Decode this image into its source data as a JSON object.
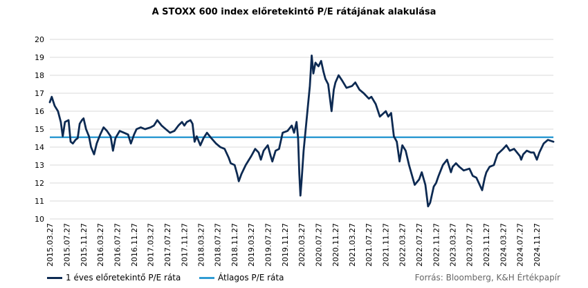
{
  "chart_data": {
    "type": "line",
    "title": "A STOXX 600  index  előretekintő P/E  rátájának alakulása",
    "source": "Forrás: Bloomberg,  K&H Értékpapír",
    "ylim": [
      10,
      20
    ],
    "yticks": [
      10,
      11,
      12,
      13,
      14,
      15,
      16,
      17,
      18,
      19,
      20
    ],
    "xlim": [
      "2015.03.27",
      "2025.03.27"
    ],
    "xtick_labels": [
      "2015.03.27",
      "2015.07.27",
      "2015.11.27",
      "2016.03.27",
      "2016.07.27",
      "2016.11.27",
      "2017.03.27",
      "2017.07.27",
      "2017.11.27",
      "2018.03.27",
      "2018.07.27",
      "2018.11.27",
      "2019.03.27",
      "2019.07.27",
      "2019.11.27",
      "2020.03.27",
      "2020.07.27",
      "2020.11.27",
      "2021.03.27",
      "2021.07.27",
      "2021.11.27",
      "2022.03.27",
      "2022.07.27",
      "2022.11.27",
      "2023.03.27",
      "2023.07.27",
      "2023.11.27",
      "2024.03.27",
      "2024.07.27",
      "2024.11.27"
    ],
    "grid": "horizontal",
    "legend_position": "bottom-left",
    "series": [
      {
        "name": "1 éves előretekintő P/E ráta",
        "color": "#0d2a52",
        "points": [
          [
            "2015.03.27",
            16.5
          ],
          [
            "2015.04.10",
            16.8
          ],
          [
            "2015.05.01",
            16.3
          ],
          [
            "2015.05.25",
            16.0
          ],
          [
            "2015.06.15",
            15.4
          ],
          [
            "2015.06.29",
            14.6
          ],
          [
            "2015.07.15",
            15.4
          ],
          [
            "2015.08.10",
            15.5
          ],
          [
            "2015.08.25",
            14.3
          ],
          [
            "2015.09.10",
            14.2
          ],
          [
            "2015.09.29",
            14.4
          ],
          [
            "2015.10.15",
            14.5
          ],
          [
            "2015.10.30",
            15.3
          ],
          [
            "2015.11.15",
            15.5
          ],
          [
            "2015.11.27",
            15.6
          ],
          [
            "2015.12.15",
            15.0
          ],
          [
            "2016.01.05",
            14.6
          ],
          [
            "2016.01.20",
            14.0
          ],
          [
            "2016.02.11",
            13.6
          ],
          [
            "2016.03.01",
            14.2
          ],
          [
            "2016.03.27",
            14.7
          ],
          [
            "2016.04.20",
            15.1
          ],
          [
            "2016.05.15",
            14.9
          ],
          [
            "2016.06.10",
            14.6
          ],
          [
            "2016.06.27",
            13.8
          ],
          [
            "2016.07.15",
            14.5
          ],
          [
            "2016.08.15",
            14.9
          ],
          [
            "2016.09.15",
            14.8
          ],
          [
            "2016.10.15",
            14.7
          ],
          [
            "2016.11.04",
            14.2
          ],
          [
            "2016.11.27",
            14.7
          ],
          [
            "2016.12.15",
            15.0
          ],
          [
            "2017.01.15",
            15.1
          ],
          [
            "2017.02.15",
            15.0
          ],
          [
            "2017.03.27",
            15.1
          ],
          [
            "2017.04.20",
            15.2
          ],
          [
            "2017.05.15",
            15.5
          ],
          [
            "2017.06.15",
            15.2
          ],
          [
            "2017.07.15",
            15.0
          ],
          [
            "2017.08.15",
            14.8
          ],
          [
            "2017.09.15",
            14.9
          ],
          [
            "2017.10.15",
            15.2
          ],
          [
            "2017.11.10",
            15.4
          ],
          [
            "2017.11.27",
            15.2
          ],
          [
            "2017.12.15",
            15.4
          ],
          [
            "2018.01.10",
            15.5
          ],
          [
            "2018.01.25",
            15.3
          ],
          [
            "2018.02.09",
            14.3
          ],
          [
            "2018.02.25",
            14.6
          ],
          [
            "2018.03.23",
            14.1
          ],
          [
            "2018.04.15",
            14.5
          ],
          [
            "2018.05.10",
            14.8
          ],
          [
            "2018.06.10",
            14.5
          ],
          [
            "2018.07.15",
            14.2
          ],
          [
            "2018.08.15",
            14.0
          ],
          [
            "2018.09.15",
            13.9
          ],
          [
            "2018.10.15",
            13.4
          ],
          [
            "2018.10.29",
            13.1
          ],
          [
            "2018.11.27",
            13.0
          ],
          [
            "2018.12.15",
            12.5
          ],
          [
            "2018.12.27",
            12.1
          ],
          [
            "2019.01.15",
            12.5
          ],
          [
            "2019.02.15",
            13.0
          ],
          [
            "2019.03.27",
            13.5
          ],
          [
            "2019.04.25",
            13.9
          ],
          [
            "2019.05.20",
            13.7
          ],
          [
            "2019.06.05",
            13.3
          ],
          [
            "2019.06.25",
            13.8
          ],
          [
            "2019.07.25",
            14.1
          ],
          [
            "2019.08.15",
            13.5
          ],
          [
            "2019.08.27",
            13.2
          ],
          [
            "2019.09.20",
            13.8
          ],
          [
            "2019.10.15",
            13.9
          ],
          [
            "2019.11.10",
            14.8
          ],
          [
            "2019.12.15",
            14.9
          ],
          [
            "2020.01.15",
            15.2
          ],
          [
            "2020.02.01",
            14.8
          ],
          [
            "2020.02.19",
            15.4
          ],
          [
            "2020.03.01",
            14.5
          ],
          [
            "2020.03.10",
            12.5
          ],
          [
            "2020.03.18",
            11.3
          ],
          [
            "2020.03.27",
            12.2
          ],
          [
            "2020.04.10",
            13.8
          ],
          [
            "2020.04.25",
            15.0
          ],
          [
            "2020.05.10",
            16.2
          ],
          [
            "2020.05.25",
            17.4
          ],
          [
            "2020.06.08",
            19.1
          ],
          [
            "2020.06.20",
            18.1
          ],
          [
            "2020.07.05",
            18.7
          ],
          [
            "2020.07.27",
            18.5
          ],
          [
            "2020.08.15",
            18.8
          ],
          [
            "2020.09.01",
            18.2
          ],
          [
            "2020.09.15",
            17.8
          ],
          [
            "2020.10.05",
            17.5
          ],
          [
            "2020.10.30",
            16.0
          ],
          [
            "2020.11.15",
            17.2
          ],
          [
            "2020.11.27",
            17.6
          ],
          [
            "2020.12.20",
            18.0
          ],
          [
            "2021.01.15",
            17.7
          ],
          [
            "2021.02.15",
            17.3
          ],
          [
            "2021.03.27",
            17.4
          ],
          [
            "2021.04.20",
            17.6
          ],
          [
            "2021.05.20",
            17.2
          ],
          [
            "2021.06.20",
            17.0
          ],
          [
            "2021.07.27",
            16.7
          ],
          [
            "2021.08.15",
            16.8
          ],
          [
            "2021.09.15",
            16.4
          ],
          [
            "2021.10.15",
            15.7
          ],
          [
            "2021.11.27",
            16.0
          ],
          [
            "2021.12.15",
            15.7
          ],
          [
            "2022.01.05",
            15.9
          ],
          [
            "2022.01.25",
            14.6
          ],
          [
            "2022.02.15",
            14.3
          ],
          [
            "2022.03.07",
            13.2
          ],
          [
            "2022.03.27",
            14.1
          ],
          [
            "2022.04.20",
            13.8
          ],
          [
            "2022.05.15",
            13.0
          ],
          [
            "2022.06.10",
            12.3
          ],
          [
            "2022.06.25",
            11.9
          ],
          [
            "2022.07.27",
            12.2
          ],
          [
            "2022.08.15",
            12.6
          ],
          [
            "2022.09.10",
            11.9
          ],
          [
            "2022.09.30",
            10.7
          ],
          [
            "2022.10.15",
            10.9
          ],
          [
            "2022.11.10",
            11.8
          ],
          [
            "2022.11.27",
            12.0
          ],
          [
            "2022.12.15",
            12.4
          ],
          [
            "2023.01.15",
            13.0
          ],
          [
            "2023.02.15",
            13.3
          ],
          [
            "2023.03.15",
            12.6
          ],
          [
            "2023.03.27",
            12.9
          ],
          [
            "2023.04.20",
            13.1
          ],
          [
            "2023.05.15",
            12.9
          ],
          [
            "2023.06.15",
            12.7
          ],
          [
            "2023.07.27",
            12.8
          ],
          [
            "2023.08.20",
            12.4
          ],
          [
            "2023.09.15",
            12.3
          ],
          [
            "2023.10.27",
            11.6
          ],
          [
            "2023.11.15",
            12.3
          ],
          [
            "2023.11.27",
            12.6
          ],
          [
            "2023.12.20",
            12.9
          ],
          [
            "2024.01.20",
            13.0
          ],
          [
            "2024.02.15",
            13.6
          ],
          [
            "2024.03.27",
            13.9
          ],
          [
            "2024.04.20",
            14.1
          ],
          [
            "2024.05.15",
            13.8
          ],
          [
            "2024.06.15",
            13.9
          ],
          [
            "2024.07.27",
            13.5
          ],
          [
            "2024.08.05",
            13.3
          ],
          [
            "2024.08.20",
            13.6
          ],
          [
            "2024.09.15",
            13.8
          ],
          [
            "2024.10.15",
            13.7
          ],
          [
            "2024.11.05",
            13.7
          ],
          [
            "2024.11.27",
            13.3
          ],
          [
            "2024.12.15",
            13.7
          ],
          [
            "2025.01.15",
            14.2
          ],
          [
            "2025.02.15",
            14.4
          ],
          [
            "2025.03.27",
            14.3
          ]
        ]
      },
      {
        "name": "Átlagos P/E ráta",
        "color": "#2f9bd3",
        "constant": 14.55
      }
    ]
  }
}
